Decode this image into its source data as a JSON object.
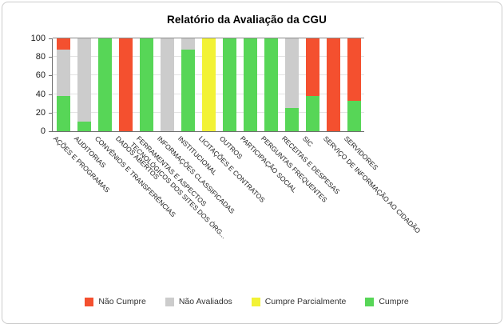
{
  "chart_data": {
    "type": "bar",
    "stacked": true,
    "title": "Relatório da Avaliação da CGU",
    "xlabel": "",
    "ylabel": "",
    "ylim": [
      0,
      100
    ],
    "yticks": [
      0,
      20,
      40,
      60,
      80,
      100
    ],
    "grid": true,
    "legend_position": "bottom",
    "categories": [
      "AÇÕES E PROGRAMAS",
      "AUDITORIAS",
      "CONVÊNIOS E TRANSFERÊNCIAS",
      "DADOS ABERTOS",
      "FERRAMENTAS E ASPECTOS\nTECNOLÓGICOS DOS SITES DOS ÓRG...",
      "INFORMAÇÕES CLASSIFICADAS",
      "INSTITUCIONAL",
      "LICITAÇÕES E CONTRATOS",
      "OUTROS",
      "PARTICIPAÇÃO SOCIAL",
      "PERGUNTAS FREQUENTES",
      "RECEITAS E DESPESAS",
      "SIC",
      "SERVIÇO DE INFORMAÇÃO AO CIDADÃO",
      "SERVIDORES"
    ],
    "series": [
      {
        "name": "Não Cumpre",
        "color": "#F4502F",
        "values": [
          12,
          0,
          0,
          100,
          0,
          0,
          0,
          0,
          0,
          0,
          0,
          0,
          62,
          100,
          67
        ]
      },
      {
        "name": "Não Avaliados",
        "color": "#CCCCCC",
        "values": [
          50,
          90,
          0,
          0,
          0,
          100,
          12,
          0,
          0,
          0,
          0,
          75,
          0,
          0,
          0
        ]
      },
      {
        "name": "Cumpre Parcialmente",
        "color": "#F2F235",
        "values": [
          0,
          0,
          0,
          0,
          0,
          0,
          0,
          100,
          0,
          0,
          0,
          0,
          0,
          0,
          0
        ]
      },
      {
        "name": "Cumpre",
        "color": "#57D657",
        "values": [
          38,
          10,
          100,
          0,
          100,
          0,
          88,
          0,
          100,
          100,
          100,
          25,
          38,
          0,
          33
        ]
      }
    ]
  }
}
